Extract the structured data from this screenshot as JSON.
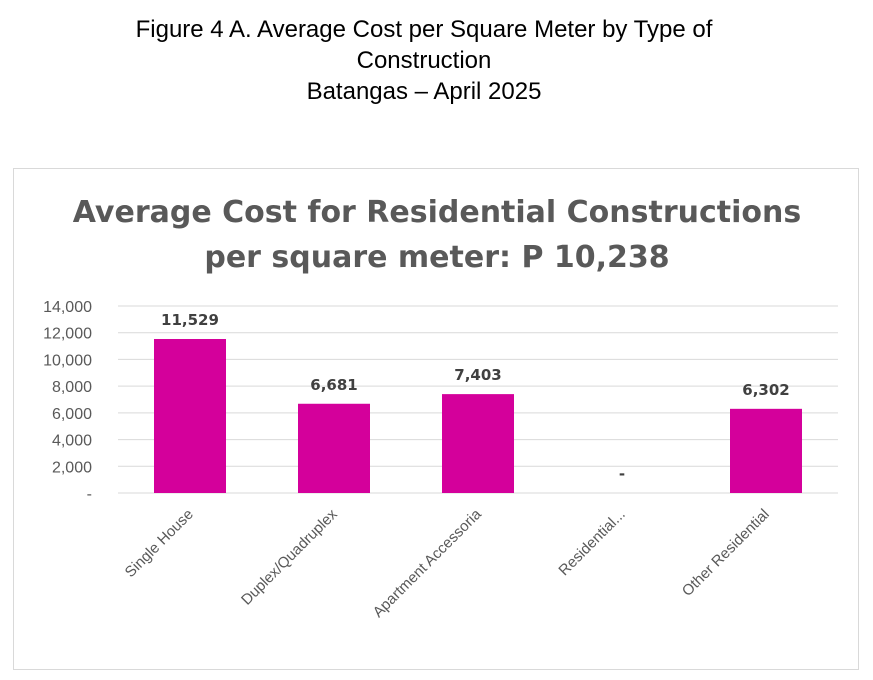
{
  "figure": {
    "title_line1": "Figure 4 A. Average Cost per Square Meter by Type of",
    "title_line2": "Construction",
    "title_line3": "Batangas – April 2025"
  },
  "chart_data": {
    "type": "bar",
    "title_line1": "Average Cost for Residential Constructions",
    "title_line2": "per square meter: P 10,238",
    "categories": [
      "Single House",
      "Duplex/Quadruplex",
      "Apartment Accessoria",
      "Residential...",
      "Other Residential"
    ],
    "values": [
      11529,
      6681,
      7403,
      0,
      6302
    ],
    "data_labels": [
      "11,529",
      "6,681",
      "7,403",
      "-",
      "6,302"
    ],
    "yticks": [
      0,
      2000,
      4000,
      6000,
      8000,
      10000,
      12000,
      14000
    ],
    "ytick_labels": [
      "-",
      "2,000",
      "4,000",
      "6,000",
      "8,000",
      "10,000",
      "12,000",
      "14,000"
    ],
    "ylim": [
      0,
      14000
    ],
    "grid": true,
    "bar_color": "#d4009b",
    "gridline_color": "#d9d9d9",
    "text_color": "#595959"
  }
}
